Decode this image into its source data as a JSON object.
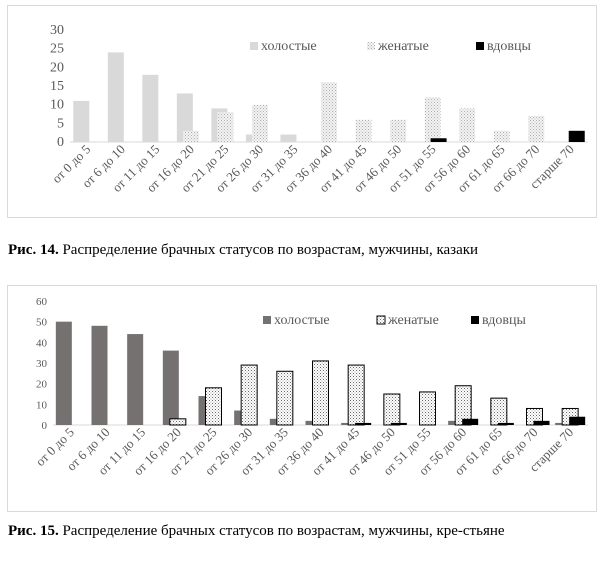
{
  "chart_data": [
    {
      "type": "bar",
      "categories": [
        "от 0 до 5",
        "от 6 до 10",
        "от 11 до 15",
        "от 16 до 20",
        "от 21 до 25",
        "от 26 до 30",
        "от 31 до 35",
        "от 36 до 40",
        "от 41 до 45",
        "от 46 до 50",
        "от 51 до 55",
        "от 56 до 60",
        "от 61 до 65",
        "от 66 до 70",
        "старше 70"
      ],
      "series": [
        {
          "name": "холостые",
          "color": "#d9d9d9",
          "values": [
            11,
            24,
            18,
            13,
            9,
            2,
            2,
            0,
            0,
            0,
            0,
            0,
            0,
            0,
            0
          ]
        },
        {
          "name": "женатые",
          "color": "#e8e8e8",
          "values": [
            0,
            0,
            0,
            3,
            8,
            10,
            0,
            16,
            6,
            6,
            12,
            9,
            3,
            7,
            0
          ]
        },
        {
          "name": "вдовцы",
          "color": "#000000",
          "values": [
            0,
            0,
            0,
            0,
            0,
            0,
            0,
            0,
            0,
            0,
            1,
            0,
            0,
            0,
            3
          ]
        }
      ],
      "yticks": [
        "0",
        "5",
        "10",
        "15",
        "20",
        "25",
        "30"
      ],
      "ylim": [
        0,
        30
      ],
      "grid": false,
      "legend": "top"
    },
    {
      "type": "bar",
      "categories": [
        "от 0 до 5",
        "от 6 до 10",
        "от 11 до 15",
        "от 16 до 20",
        "от 21 до 25",
        "от 26 до 30",
        "от 31 до 35",
        "от 36 до 40",
        "от 41 до 45",
        "от 46 до 50",
        "от 51 до 55",
        "от 56 до 60",
        "от 61 до 65",
        "от 66 до 70",
        "старше 70"
      ],
      "series": [
        {
          "name": "холостые",
          "color": "#767171",
          "values": [
            50,
            48,
            44,
            36,
            14,
            7,
            3,
            2,
            1,
            0,
            0,
            2,
            0,
            0,
            1
          ]
        },
        {
          "name": "женатые",
          "color": "#ffffff",
          "values": [
            0,
            0,
            0,
            3,
            18,
            29,
            26,
            31,
            29,
            15,
            16,
            19,
            13,
            8,
            8
          ]
        },
        {
          "name": "вдовцы",
          "color": "#000000",
          "values": [
            0,
            0,
            0,
            0,
            0,
            0,
            0,
            0,
            1,
            1,
            0,
            3,
            1,
            2,
            4
          ]
        }
      ],
      "yticks": [
        "0",
        "10",
        "20",
        "30",
        "40",
        "50",
        "60"
      ],
      "ylim": [
        0,
        60
      ],
      "grid": false,
      "legend": "top"
    }
  ],
  "captions": {
    "fig14_label": "Рис. 14.",
    "fig14_text": " Распределение брачных статусов по возрастам, мужчины, казаки",
    "fig15_label": "Рис. 15.",
    "fig15_text": " Распределение брачных статусов по возрастам, мужчины, кре-стьяне"
  }
}
